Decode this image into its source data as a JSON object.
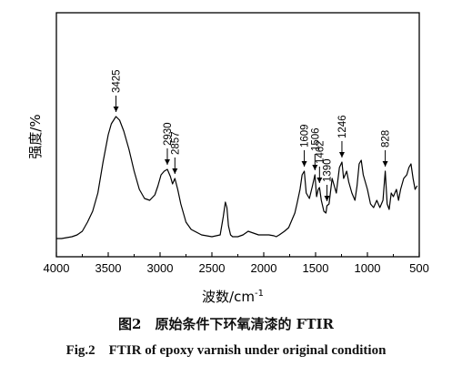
{
  "chart_data": {
    "type": "line",
    "xlabel": "波数/cm",
    "xlabel_sup": "-1",
    "ylabel": "强度/%",
    "xlim": [
      4000,
      500
    ],
    "xaxis_reversed": true,
    "x_ticks": [
      4000,
      3500,
      3000,
      2500,
      2000,
      1500,
      1000,
      500
    ],
    "y_ticks_labeled": false,
    "grid": false,
    "legend": "none",
    "line_color": "#000000",
    "series": [
      {
        "x": [
          4000,
          3950,
          3900,
          3850,
          3800,
          3750,
          3700,
          3650,
          3600,
          3550,
          3500,
          3470,
          3425,
          3390,
          3350,
          3300,
          3250,
          3200,
          3150,
          3100,
          3050,
          3020,
          2990,
          2960,
          2930,
          2900,
          2880,
          2857,
          2830,
          2800,
          2750,
          2700,
          2600,
          2500,
          2420,
          2390,
          2370,
          2355,
          2340,
          2320,
          2300,
          2250,
          2200,
          2150,
          2100,
          2050,
          2000,
          1950,
          1900,
          1880,
          1850,
          1800,
          1760,
          1730,
          1700,
          1680,
          1650,
          1630,
          1609,
          1590,
          1560,
          1530,
          1506,
          1490,
          1475,
          1462,
          1445,
          1420,
          1400,
          1390,
          1370,
          1340,
          1300,
          1270,
          1246,
          1230,
          1200,
          1180,
          1150,
          1120,
          1100,
          1080,
          1060,
          1040,
          1020,
          1000,
          970,
          940,
          910,
          880,
          850,
          828,
          810,
          790,
          770,
          750,
          720,
          700,
          680,
          650,
          620,
          600,
          580,
          560,
          540,
          520
        ],
        "y": [
          3,
          3,
          3.5,
          4,
          5,
          7,
          12,
          18,
          28,
          45,
          60,
          66,
          70,
          68,
          62,
          52,
          40,
          30,
          25,
          24,
          27,
          32,
          38,
          40,
          41,
          37,
          33,
          36,
          30,
          22,
          12,
          8,
          5,
          4,
          5,
          15,
          23,
          20,
          10,
          5,
          4,
          4,
          5,
          7,
          6,
          5,
          5,
          5,
          4.5,
          4,
          5,
          7,
          9,
          13,
          17,
          22,
          30,
          38,
          40,
          28,
          25,
          32,
          38,
          26,
          30,
          31,
          24,
          18,
          17,
          21,
          22,
          36,
          28,
          42,
          45,
          36,
          40,
          34,
          28,
          24,
          32,
          44,
          46,
          38,
          34,
          30,
          22,
          20,
          24,
          20,
          24,
          40,
          22,
          19,
          28,
          26,
          30,
          24,
          30,
          36,
          38,
          42,
          44,
          36,
          30,
          32
        ]
      }
    ],
    "annotations": [
      {
        "label": "3425",
        "x": 3425
      },
      {
        "label": "2930",
        "x": 2930
      },
      {
        "label": "2857",
        "x": 2857
      },
      {
        "label": "1609",
        "x": 1609
      },
      {
        "label": "1506",
        "x": 1506
      },
      {
        "label": "1462",
        "x": 1462
      },
      {
        "label": "1390",
        "x": 1390
      },
      {
        "label": "1246",
        "x": 1246
      },
      {
        "label": "828",
        "x": 828
      }
    ]
  },
  "caption": {
    "zh": "图2　原始条件下环氧清漆的 FTIR",
    "en": "Fig.2　FTIR of epoxy varnish under original condition"
  }
}
